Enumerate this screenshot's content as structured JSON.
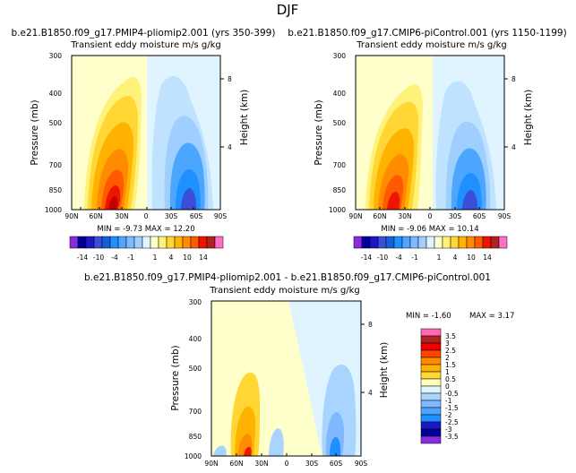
{
  "page_title": "DJF",
  "chart_data": [
    {
      "type": "contour",
      "case": "b.e21.B1850.f09_g17.PMIP4-pliomip2.001",
      "years": "(yrs 350-399)",
      "title": "b.e21.B1850.f09_g17.PMIP4-pliomip2.001  (yrs 350-399)",
      "subtitle": "Transient eddy moisture m/s g/kg",
      "ylabel": "Pressure (mb)",
      "y2label": "Height (km)",
      "x_ticks": [
        "90N",
        "60N",
        "30N",
        "0",
        "30S",
        "60S",
        "90S"
      ],
      "y_ticks": [
        "300",
        "400",
        "500",
        "700",
        "850",
        "1000"
      ],
      "y2_ticks": [
        "8",
        "4"
      ],
      "min": -9.73,
      "max": 12.2,
      "stats": "MIN = -9.73   MAX = 12.20",
      "colorbar_labels": [
        "-14",
        "-10",
        "-4",
        "-1",
        "1",
        "4",
        "10",
        "14"
      ]
    },
    {
      "type": "contour",
      "case": "b.e21.B1850.f09_g17.CMIP6-piControl.001",
      "years": "(yrs 1150-1199)",
      "title": "b.e21.B1850.f09_g17.CMIP6-piControl.001  (yrs 1150-1199)",
      "subtitle": "Transient eddy moisture m/s g/kg",
      "ylabel": "Pressure (mb)",
      "y2label": "Height (km)",
      "x_ticks": [
        "90N",
        "60N",
        "30N",
        "0",
        "30S",
        "60S",
        "90S"
      ],
      "y_ticks": [
        "300",
        "400",
        "500",
        "700",
        "850",
        "1000"
      ],
      "y2_ticks": [
        "8",
        "4"
      ],
      "min": -9.06,
      "max": 10.14,
      "stats": "MIN = -9.06   MAX = 10.14",
      "colorbar_labels": [
        "-14",
        "-10",
        "-4",
        "-1",
        "1",
        "4",
        "10",
        "14"
      ]
    },
    {
      "type": "contour",
      "case": "b.e21.B1850.f09_g17.PMIP4-pliomip2.001 - b.e21.B1850.f09_g17.CMIP6-piControl.001",
      "title": "b.e21.B1850.f09_g17.PMIP4-pliomip2.001 - b.e21.B1850.f09_g17.CMIP6-piControl.001",
      "subtitle": "Transient eddy moisture m/s g/kg",
      "ylabel": "Pressure (mb)",
      "y2label": "Height (km)",
      "x_ticks": [
        "90N",
        "60N",
        "30N",
        "0",
        "30S",
        "60S",
        "90S"
      ],
      "y_ticks": [
        "300",
        "400",
        "500",
        "700",
        "850",
        "1000"
      ],
      "y2_ticks": [
        "8",
        "4"
      ],
      "min": -1.6,
      "max": 3.17,
      "stats_min": "MIN = -1.60",
      "stats_max": "MAX = 3.17",
      "colorbar_labels": [
        "3.5",
        "3",
        "2.5",
        "2",
        "1.5",
        "1",
        "0.5",
        "0",
        "-0.5",
        "-1",
        "-1.5",
        "-2",
        "-2.5",
        "-3",
        "-3.5"
      ]
    }
  ],
  "colors": {
    "warm": [
      "#ffffcc",
      "#fff27a",
      "#ffd633",
      "#ffb300",
      "#ff8c00",
      "#ff5a00",
      "#ee1500",
      "#c20000",
      "#b22222",
      "#ff6ec7"
    ],
    "cool": [
      "#dff4ff",
      "#bfe3ff",
      "#9fcfff",
      "#7fb8ff",
      "#4ca6ff",
      "#1e90ff",
      "#1560d8",
      "#3b4fd6",
      "#1a18c8",
      "#000099",
      "#8a2be2"
    ],
    "diff_bar": [
      "#ff69b4",
      "#b22222",
      "#ee0000",
      "#ff4500",
      "#ff8c00",
      "#ffb300",
      "#ffd633",
      "#ffffbb",
      "#dff4ff",
      "#a8d4ff",
      "#7fb8ff",
      "#4ca6ff",
      "#1e90ff",
      "#1a18c8",
      "#000099",
      "#8a2be2"
    ]
  }
}
